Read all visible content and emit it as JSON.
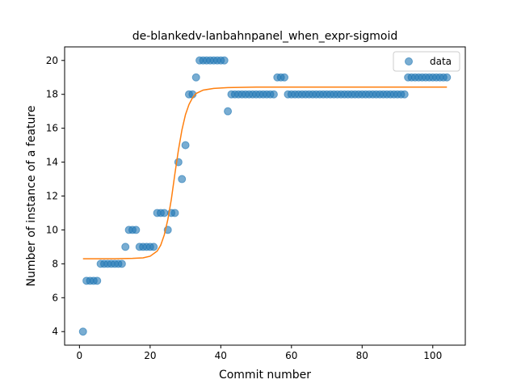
{
  "chart_data": {
    "type": "scatter",
    "title": "de-blankedv-lanbahnpanel_when_expr-sigmoid",
    "xlabel": "Commit number",
    "ylabel": "Number of instance of a feature",
    "xlim": [
      -4.2,
      109.2
    ],
    "ylim": [
      3.2,
      20.8
    ],
    "xticks": [
      0,
      20,
      40,
      60,
      80,
      100
    ],
    "yticks": [
      4,
      6,
      8,
      10,
      12,
      14,
      16,
      18,
      20
    ],
    "grid": false,
    "legend_position": "top-right",
    "series": [
      {
        "name": "data",
        "kind": "points",
        "color": "#1f77b4",
        "x": [
          1,
          2,
          3,
          4,
          5,
          6,
          7,
          8,
          9,
          10,
          11,
          12,
          13,
          14,
          15,
          16,
          17,
          18,
          19,
          20,
          21,
          22,
          23,
          24,
          25,
          26,
          27,
          28,
          29,
          30,
          31,
          32,
          33,
          34,
          35,
          36,
          37,
          38,
          39,
          40,
          41,
          42,
          43,
          44,
          45,
          46,
          47,
          48,
          49,
          50,
          51,
          52,
          53,
          54,
          55,
          56,
          57,
          58,
          59,
          60,
          61,
          62,
          63,
          64,
          65,
          66,
          67,
          68,
          69,
          70,
          71,
          72,
          73,
          74,
          75,
          76,
          77,
          78,
          79,
          80,
          81,
          82,
          83,
          84,
          85,
          86,
          87,
          88,
          89,
          90,
          91,
          92,
          93,
          94,
          95,
          96,
          97,
          98,
          99,
          100,
          101,
          102,
          103,
          104
        ],
        "y": [
          4,
          7,
          7,
          7,
          7,
          8,
          8,
          8,
          8,
          8,
          8,
          8,
          9,
          10,
          10,
          10,
          9,
          9,
          9,
          9,
          9,
          11,
          11,
          11,
          10,
          11,
          11,
          14,
          13,
          15,
          18,
          18,
          19,
          20,
          20,
          20,
          20,
          20,
          20,
          20,
          20,
          17,
          18,
          18,
          18,
          18,
          18,
          18,
          18,
          18,
          18,
          18,
          18,
          18,
          18,
          19,
          19,
          19,
          18,
          18,
          18,
          18,
          18,
          18,
          18,
          18,
          18,
          18,
          18,
          18,
          18,
          18,
          18,
          18,
          18,
          18,
          18,
          18,
          18,
          18,
          18,
          18,
          18,
          18,
          18,
          18,
          18,
          18,
          18,
          18,
          18,
          18,
          19,
          19,
          19,
          19,
          19,
          19,
          19,
          19,
          19,
          19,
          19,
          19
        ]
      },
      {
        "kind": "line",
        "color": "#ff7f0e",
        "x": [
          1,
          10,
          15,
          18,
          20,
          22,
          23,
          24,
          25,
          26,
          27,
          28,
          29,
          30,
          31,
          32,
          33,
          35,
          38,
          42,
          50,
          70,
          104
        ],
        "y": [
          8.3,
          8.3,
          8.32,
          8.35,
          8.45,
          8.75,
          9.1,
          9.7,
          10.6,
          11.8,
          13.3,
          14.7,
          15.9,
          16.8,
          17.4,
          17.8,
          18.05,
          18.25,
          18.35,
          18.4,
          18.43,
          18.43,
          18.43
        ]
      }
    ]
  }
}
